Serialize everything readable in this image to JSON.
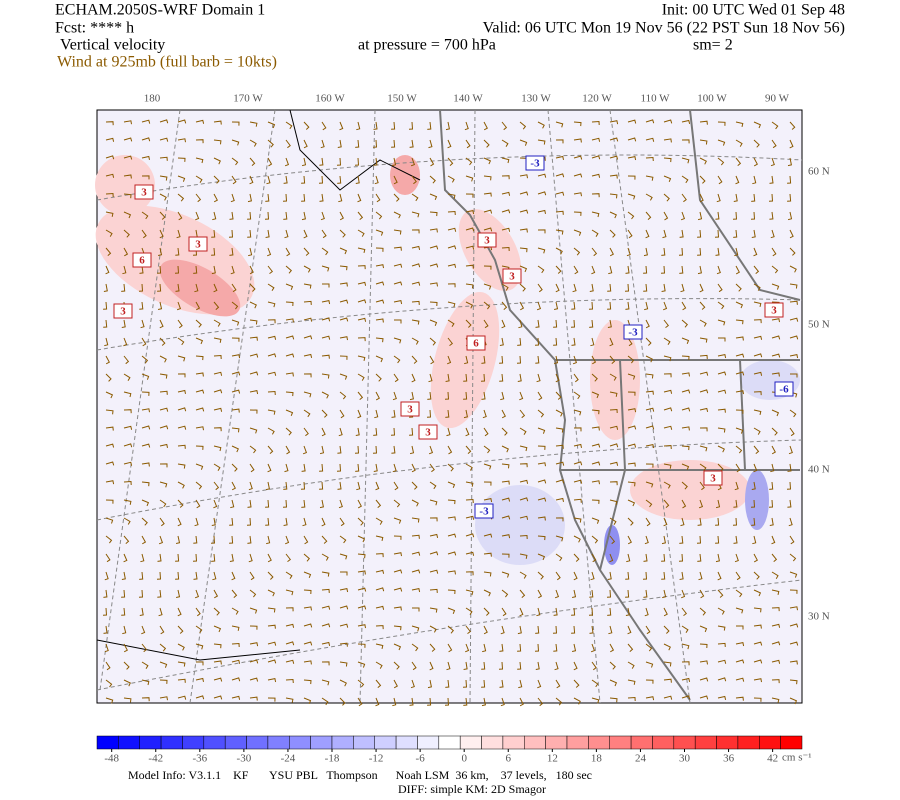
{
  "header": {
    "model": "ECHAM.2050S-WRF Domain 1",
    "init": "Init: 00 UTC Wed 01 Sep 48",
    "forecast": "Fcst: **** h",
    "valid": "Valid: 06 UTC Mon 19 Nov 56 (22 PST Sun 18 Nov 56)",
    "field": "Vertical velocity",
    "level": "at pressure =  700 hPa",
    "smoothing": "sm= 2",
    "wind": "Wind at 925mb (full barb = 10kts)"
  },
  "map": {
    "longitude_labels": [
      "180",
      "170 W",
      "160 W",
      "150 W",
      "140 W",
      "130 W",
      "120 W",
      "110 W",
      "100 W",
      "90 W"
    ],
    "latitude_labels": [
      "60 N",
      "50 N",
      "40 N",
      "30 N"
    ],
    "contour_labels": [
      "3",
      "3",
      "6",
      "3",
      "3",
      "3",
      "6",
      "3",
      "3",
      "3",
      "3",
      "-3",
      "-3",
      "-3",
      "-6"
    ]
  },
  "colorbar": {
    "ticks": [
      -48,
      -42,
      -36,
      -30,
      -24,
      -18,
      -12,
      -6,
      0,
      6,
      12,
      18,
      24,
      30,
      36,
      42
    ],
    "lim": [
      -50,
      46
    ],
    "unit": "cm s⁻¹"
  },
  "footer": {
    "model_info": "Model Info: V3.1.1    KF       YSU PBL   Thompson      Noah LSM  36 km,    37 levels,   180 sec",
    "diff": "DIFF: simple KM: 2D Smagor"
  }
}
